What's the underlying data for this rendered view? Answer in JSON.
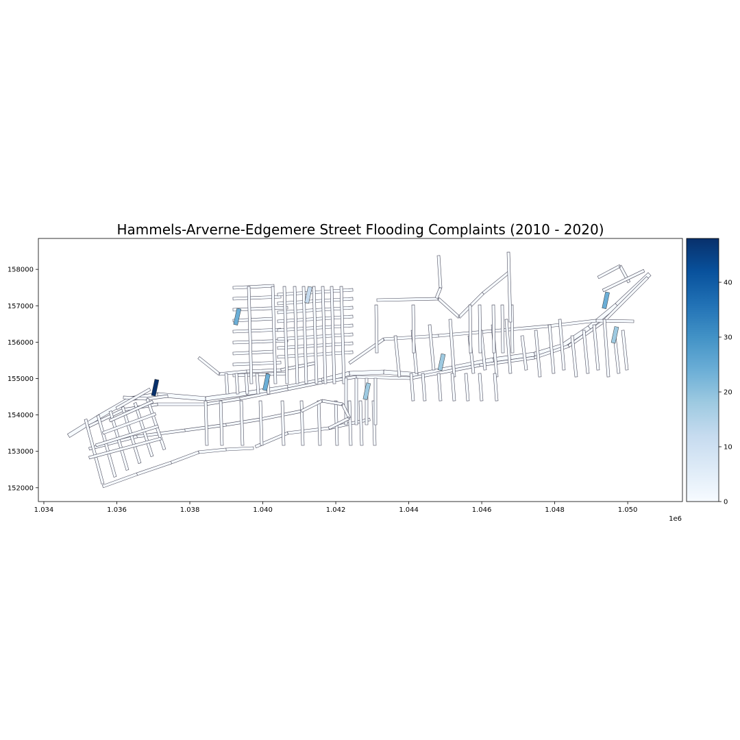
{
  "chart_data": {
    "type": "heatmap",
    "title": "Hammels-Arverne-Edgemere Street Flooding Complaints (2010 - 2020)",
    "xlabel": "",
    "ylabel": "",
    "x_ticks": [
      "1.034",
      "1.036",
      "1.038",
      "1.040",
      "1.042",
      "1.044",
      "1.046",
      "1.048",
      "1.050"
    ],
    "x_tick_values": [
      1034000,
      1036000,
      1038000,
      1040000,
      1042000,
      1044000,
      1046000,
      1048000,
      1050000
    ],
    "x_offset_label": "1e6",
    "y_ticks": [
      "152000",
      "153000",
      "154000",
      "155000",
      "156000",
      "157000",
      "158000"
    ],
    "y_tick_values": [
      152000,
      153000,
      154000,
      155000,
      156000,
      157000,
      158000
    ],
    "xlim": [
      1033850,
      1051500
    ],
    "ylim": [
      151620,
      158850
    ],
    "colorbar": {
      "colormap": "Blues",
      "ticks": [
        "0",
        "10",
        "20",
        "30",
        "40"
      ],
      "tick_values": [
        0,
        10,
        20,
        30,
        40
      ],
      "range": [
        0,
        48
      ]
    },
    "highlighted_segments": [
      {
        "x": 1037050,
        "y": 154750,
        "value": 48
      },
      {
        "x": 1039300,
        "y": 156700,
        "value": 22
      },
      {
        "x": 1040100,
        "y": 154900,
        "value": 24
      },
      {
        "x": 1041250,
        "y": 157300,
        "value": 14
      },
      {
        "x": 1042850,
        "y": 154650,
        "value": 16
      },
      {
        "x": 1044900,
        "y": 155450,
        "value": 20
      },
      {
        "x": 1049400,
        "y": 157150,
        "value": 26
      },
      {
        "x": 1049650,
        "y": 156200,
        "value": 18
      }
    ]
  }
}
